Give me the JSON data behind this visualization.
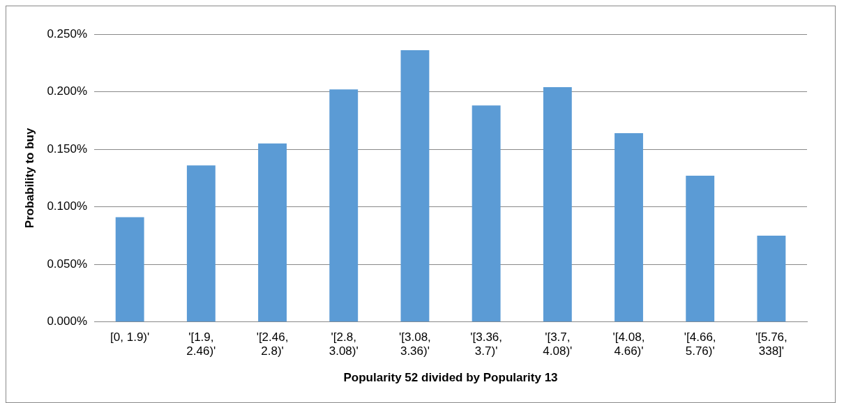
{
  "chart_data": {
    "type": "bar",
    "xlabel": "Popularity 52 divided by Popularity 13",
    "ylabel": "Probability to buy",
    "categories": [
      "[0, 1.9)'",
      "'[1.9, 2.46)'",
      "'[2.46, 2.8)'",
      "'[2.8, 3.08)'",
      "'[3.08, 3.36)'",
      "'[3.36, 3.7)'",
      "'[3.7, 4.08)'",
      "'[4.08, 4.66)'",
      "'[4.66, 5.76)'",
      "'[5.76, 338]'"
    ],
    "values": [
      0.091,
      0.136,
      0.155,
      0.202,
      0.236,
      0.188,
      0.204,
      0.164,
      0.127,
      0.075
    ],
    "color": "#5b9bd5",
    "ylim": [
      0,
      0.25
    ],
    "yticks": [
      {
        "value": 0,
        "label": "0.000%"
      },
      {
        "value": 0.05,
        "label": "0.050%"
      },
      {
        "value": 0.1,
        "label": "0.100%"
      },
      {
        "value": 0.15,
        "label": "0.150%"
      },
      {
        "value": 0.2,
        "label": "0.200%"
      },
      {
        "value": 0.25,
        "label": "0.250%"
      }
    ],
    "grid": "y",
    "legend": false
  }
}
